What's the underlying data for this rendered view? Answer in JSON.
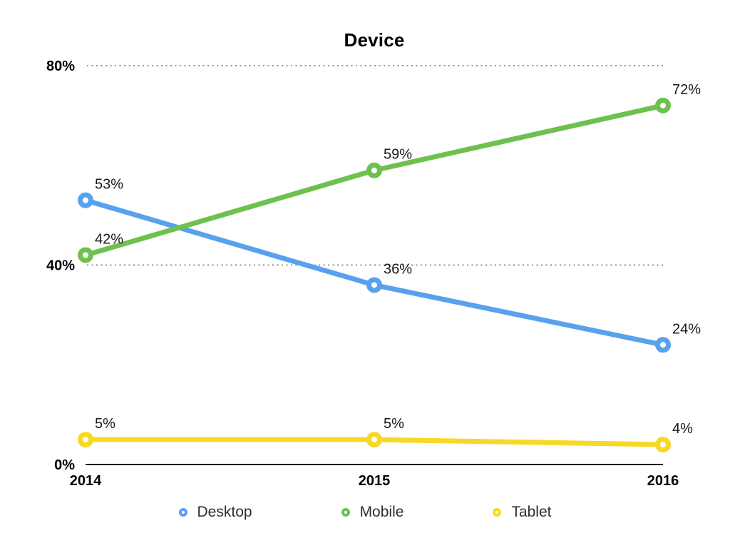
{
  "chart_data": {
    "type": "line",
    "title": "Device",
    "categories": [
      "2014",
      "2015",
      "2016"
    ],
    "series": [
      {
        "name": "Desktop",
        "color": "#58a1ee",
        "values": [
          53,
          36,
          24
        ],
        "labels": [
          "53%",
          "36%",
          "24%"
        ]
      },
      {
        "name": "Mobile",
        "color": "#6ec04f",
        "values": [
          42,
          59,
          72
        ],
        "labels": [
          "42%",
          "59%",
          "72%"
        ]
      },
      {
        "name": "Tablet",
        "color": "#f8d827",
        "values": [
          5,
          5,
          4
        ],
        "labels": [
          "5%",
          "5%",
          "4%"
        ]
      }
    ],
    "y_axis": {
      "min": 0,
      "max": 80,
      "ticks": [
        {
          "value": 0,
          "label": "0%"
        },
        {
          "value": 40,
          "label": "40%"
        },
        {
          "value": 80,
          "label": "80%"
        }
      ]
    },
    "grid": "dotted horizontal lines at 40% and 80%, solid axis at 0%",
    "legend_position": "bottom",
    "colors": {
      "gridline": "#8f8f8f",
      "axis": "#000000",
      "tick_label": "#000000",
      "point_label": "#1a1a1a",
      "legend_text": "#2e2e2e"
    }
  }
}
